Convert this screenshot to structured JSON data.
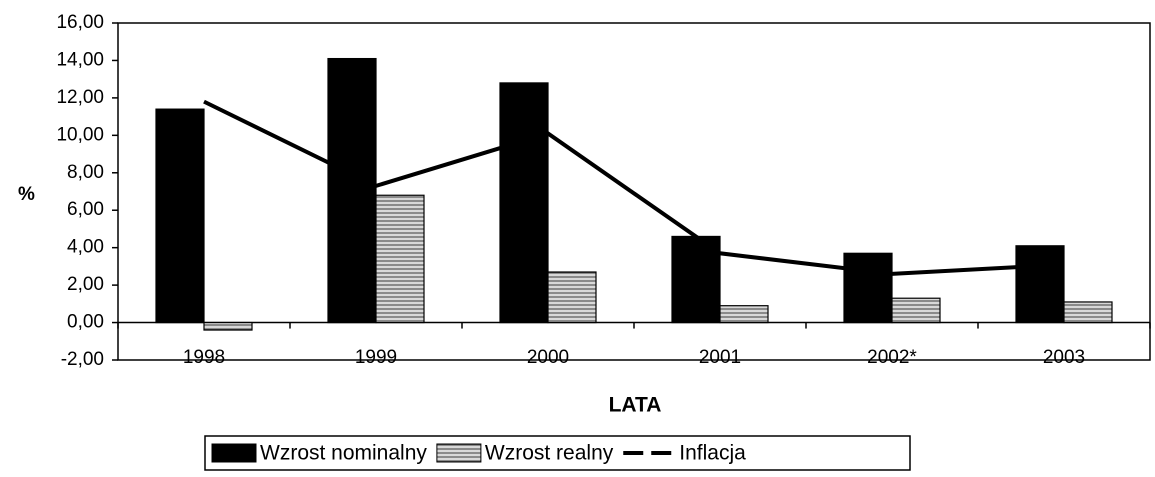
{
  "chart_data": {
    "type": "bar",
    "y_label": "%",
    "x_label": "LATA",
    "categories": [
      "1998",
      "1999",
      "2000",
      "2001",
      "2002*",
      "2003"
    ],
    "series": [
      {
        "name": "Wzrost nominalny",
        "color": "#000000",
        "values": [
          11.4,
          14.1,
          12.8,
          4.6,
          3.7,
          4.1
        ]
      },
      {
        "name": "Wzrost realny",
        "color": "#a0a0a0",
        "values": [
          -0.4,
          6.8,
          2.7,
          0.9,
          1.3,
          1.1
        ]
      },
      {
        "name": "Inflacja",
        "type": "line",
        "color": "#000000",
        "values": [
          11.8,
          7.3,
          10.1,
          3.7,
          2.6,
          3.1
        ]
      }
    ],
    "ylim": [
      -2,
      16
    ],
    "yticks": [
      {
        "value": -2,
        "label": "-2,00"
      },
      {
        "value": 0,
        "label": "0,00"
      },
      {
        "value": 2,
        "label": "2,00"
      },
      {
        "value": 4,
        "label": "4,00"
      },
      {
        "value": 6,
        "label": "6,00"
      },
      {
        "value": 8,
        "label": "8,00"
      },
      {
        "value": 10,
        "label": "10,00"
      },
      {
        "value": 12,
        "label": "12,00"
      },
      {
        "value": 14,
        "label": "14,00"
      },
      {
        "value": 16,
        "label": "16,00"
      }
    ],
    "legend": "bottom"
  }
}
